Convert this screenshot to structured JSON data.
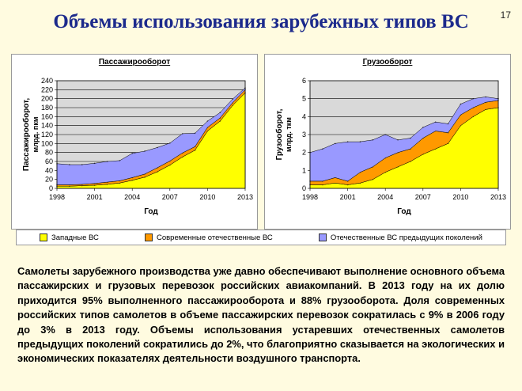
{
  "slide": {
    "title": "Объемы использования зарубежных типов ВС",
    "page_number": "17",
    "body_text": "Самолеты зарубежного производства уже давно обеспечивают выполнение основного объема пассажирских и грузовых перевозок российских авиакомпаний. В 2013 году на их долю приходится 95% выполненного пассажирооборота и 88% грузооборота. Доля современных российских типов самолетов в объеме пассажирских перевозок сократилась с 9% в 2006 году до 3% в 2013 году. Объемы использования устаревших отечественных самолетов предыдущих поколений сократились до 2%, что благоприятно сказывается на экологических и экономических показателях деятельности воздушного транспорта."
  },
  "colors": {
    "foreign": "#ffff00",
    "modern_domestic": "#ff9900",
    "old_domestic": "#9999ff",
    "plot_background": "#d9d9d9"
  },
  "legend": [
    {
      "label": "Западные ВС",
      "color": "#ffff00"
    },
    {
      "label": "Современные отечественные ВС",
      "color": "#ff9900"
    },
    {
      "label": "Отечественные ВС предыдущих поколений",
      "color": "#9999ff"
    }
  ],
  "chart_data": [
    {
      "type": "area",
      "stacked": true,
      "title": "Пассажирооборот",
      "xlabel": "Год",
      "ylabel": "Пассажирооборот, млрд. пкм",
      "xlim": [
        1998,
        2013
      ],
      "ylim": [
        0,
        240
      ],
      "y_ticks": [
        0,
        20,
        40,
        60,
        80,
        100,
        120,
        140,
        160,
        180,
        200,
        220,
        240
      ],
      "x_tick_labels": [
        "1998",
        "2001",
        "2004",
        "2007",
        "2010",
        "2013"
      ],
      "grid": true,
      "x": [
        1998,
        1999,
        2000,
        2001,
        2002,
        2003,
        2004,
        2005,
        2006,
        2007,
        2008,
        2009,
        2010,
        2011,
        2012,
        2013
      ],
      "series": [
        {
          "name": "Западные ВС",
          "values": [
            5,
            5,
            6,
            7,
            9,
            12,
            18,
            25,
            37,
            52,
            70,
            85,
            128,
            150,
            185,
            213
          ]
        },
        {
          "name": "Современные отечественные ВС",
          "values": [
            3,
            3,
            3,
            4,
            5,
            5,
            6,
            7,
            9,
            9,
            9,
            8,
            8,
            7,
            6,
            7
          ]
        },
        {
          "name": "Отечественные ВС предыдущих поколений",
          "values": [
            47,
            45,
            44,
            45,
            46,
            45,
            54,
            51,
            45,
            40,
            43,
            30,
            14,
            12,
            8,
            4
          ]
        }
      ]
    },
    {
      "type": "area",
      "stacked": true,
      "title": "Грузооборот",
      "xlabel": "Год",
      "ylabel": "Грузооборот, млрд. ткм",
      "xlim": [
        1998,
        2013
      ],
      "ylim": [
        0,
        6
      ],
      "y_ticks": [
        0,
        1,
        2,
        3,
        4,
        5,
        6
      ],
      "x_tick_labels": [
        "1998",
        "2001",
        "2004",
        "2007",
        "2010",
        "2013"
      ],
      "grid": true,
      "x": [
        1998,
        1999,
        2000,
        2001,
        2002,
        2003,
        2004,
        2005,
        2006,
        2007,
        2008,
        2009,
        2010,
        2011,
        2012,
        2013
      ],
      "series": [
        {
          "name": "Западные ВС",
          "values": [
            0.2,
            0.2,
            0.3,
            0.2,
            0.3,
            0.5,
            0.9,
            1.2,
            1.5,
            1.9,
            2.2,
            2.5,
            3.5,
            4.0,
            4.4,
            4.5
          ]
        },
        {
          "name": "Современные отечественные ВС",
          "values": [
            0.2,
            0.2,
            0.3,
            0.2,
            0.6,
            0.7,
            0.8,
            0.8,
            0.7,
            0.9,
            1.0,
            0.6,
            0.6,
            0.5,
            0.4,
            0.4
          ]
        },
        {
          "name": "Отечественные ВС предыдущих поколений",
          "values": [
            1.6,
            1.8,
            1.9,
            2.2,
            1.7,
            1.5,
            1.3,
            0.7,
            0.6,
            0.6,
            0.5,
            0.5,
            0.6,
            0.5,
            0.3,
            0.1
          ]
        }
      ]
    }
  ]
}
